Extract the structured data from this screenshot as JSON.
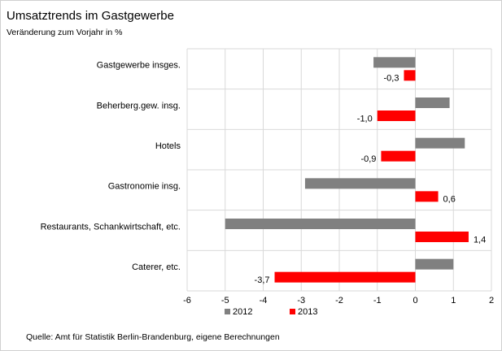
{
  "chart_data": {
    "type": "hbar",
    "title": "Umsatztrends  im Gastgewerbe",
    "subtitle": "Veränderung zum Vorjahr in %",
    "source": "Quelle: Amt für Statistik Berlin-Brandenburg, eigene Berechnungen",
    "categories": [
      "Gastgewerbe insges.",
      "Beherberg.gew. insg.",
      "Hotels",
      "Gastronomie insg.",
      "Restaurants, Schankwirtschaft, etc.",
      "Caterer, etc."
    ],
    "series": [
      {
        "name": "2012",
        "color": "#808080",
        "values": [
          -1.1,
          0.9,
          1.3,
          -2.9,
          -5.0,
          1.0
        ]
      },
      {
        "name": "2013",
        "color": "#ff0000",
        "values": [
          -0.3,
          -1.0,
          -0.9,
          0.6,
          1.4,
          -3.7
        ],
        "value_labels": [
          "-0,3",
          "-1,0",
          "-0,9",
          "0,6",
          "1,4",
          "-3,7"
        ]
      }
    ],
    "xlim": [
      -6,
      2
    ],
    "xticks": [
      -6,
      -5,
      -4,
      -3,
      -2,
      -1,
      0,
      1,
      2
    ],
    "grid": true,
    "legend": "bottom"
  }
}
